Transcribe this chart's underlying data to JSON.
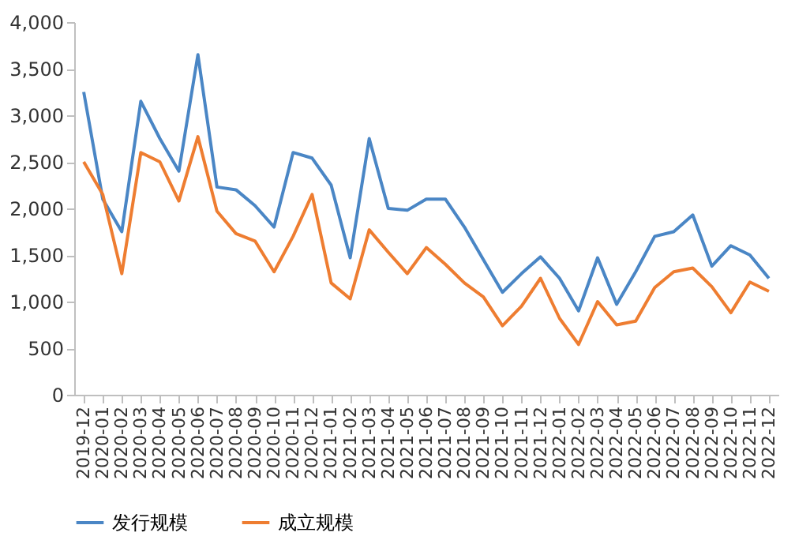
{
  "chart_data": {
    "type": "line",
    "categories": [
      "2019-12",
      "2020-01",
      "2020-02",
      "2020-03",
      "2020-04",
      "2020-05",
      "2020-06",
      "2020-07",
      "2020-08",
      "2020-09",
      "2020-10",
      "2020-11",
      "2020-12",
      "2021-01",
      "2021-02",
      "2021-03",
      "2021-04",
      "2021-05",
      "2021-06",
      "2021-07",
      "2021-08",
      "2021-09",
      "2021-10",
      "2021-11",
      "2021-12",
      "2022-01",
      "2022-02",
      "2022-03",
      "2022-04",
      "2022-05",
      "2022-06",
      "2022-07",
      "2022-08",
      "2022-09",
      "2022-10",
      "2022-11",
      "2022-12"
    ],
    "series": [
      {
        "name": "发行规模",
        "color": "#4a86c5",
        "values": [
          3250,
          2100,
          1750,
          3150,
          2750,
          2400,
          3650,
          2230,
          2200,
          2030,
          1800,
          2600,
          2540,
          2250,
          1470,
          2750,
          2000,
          1980,
          2100,
          2100,
          1800,
          1450,
          1100,
          1300,
          1480,
          1250,
          900,
          1470,
          970,
          1320,
          1700,
          1750,
          1930,
          1380,
          1600,
          1500,
          1250
        ]
      },
      {
        "name": "成立规模",
        "color": "#ee7d31",
        "values": [
          2500,
          2150,
          1300,
          2600,
          2500,
          2080,
          2770,
          1970,
          1730,
          1650,
          1320,
          1700,
          2150,
          1200,
          1030,
          1770,
          1530,
          1300,
          1580,
          1400,
          1200,
          1050,
          740,
          950,
          1250,
          820,
          540,
          1000,
          750,
          790,
          1150,
          1320,
          1360,
          1160,
          880,
          1210,
          1110
        ]
      }
    ],
    "ylim": [
      0,
      4000
    ],
    "yticks": [
      0,
      500,
      {
        "value": 1000,
        "label": "1,000"
      },
      {
        "value": 1500,
        "label": "1,500"
      },
      {
        "value": 2000,
        "label": "2,000"
      },
      {
        "value": 2500,
        "label": "2,500"
      },
      {
        "value": 3000,
        "label": "3,000"
      },
      {
        "value": 3500,
        "label": "3,500"
      },
      {
        "value": 4000,
        "label": "4,000"
      }
    ],
    "grid": false,
    "legend": "bottom",
    "marker": "none",
    "line_style": "solid"
  }
}
